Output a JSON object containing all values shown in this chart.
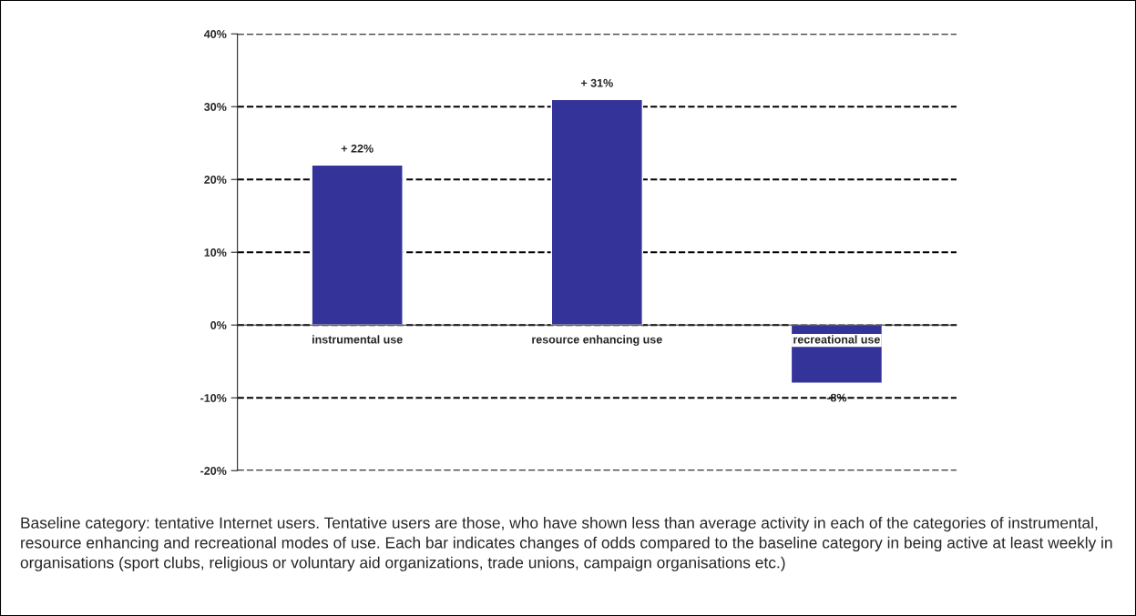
{
  "chart_data": {
    "type": "bar",
    "categories": [
      "instrumental use",
      "resource enhancing use",
      "recreational use"
    ],
    "values": [
      22,
      31,
      -8
    ],
    "value_labels": [
      "+ 22%",
      "+ 31%",
      "-8%"
    ],
    "color": "#333399",
    "ylim": [
      -20,
      40
    ],
    "yticks": [
      {
        "value": -20,
        "label": "-20%"
      },
      {
        "value": -10,
        "label": "-10%"
      },
      {
        "value": 0,
        "label": "0%"
      },
      {
        "value": 10,
        "label": "10%"
      },
      {
        "value": 20,
        "label": "20%"
      },
      {
        "value": 30,
        "label": "30%"
      },
      {
        "value": 40,
        "label": "40%"
      }
    ],
    "grid": "y",
    "line_style": "dashed",
    "annotations": [
      "Baseline category: tentative Internet users. Tentative users are those, who have shown less than average activity in each of the categories of instrumental, resource enhancing and recreational modes of use. Each bar indicates changes of odds compared to the baseline category in being active at least weekly in organisations (sport clubs, religious or voluntary aid organizations, trade unions, campaign organisations etc.)"
    ]
  }
}
